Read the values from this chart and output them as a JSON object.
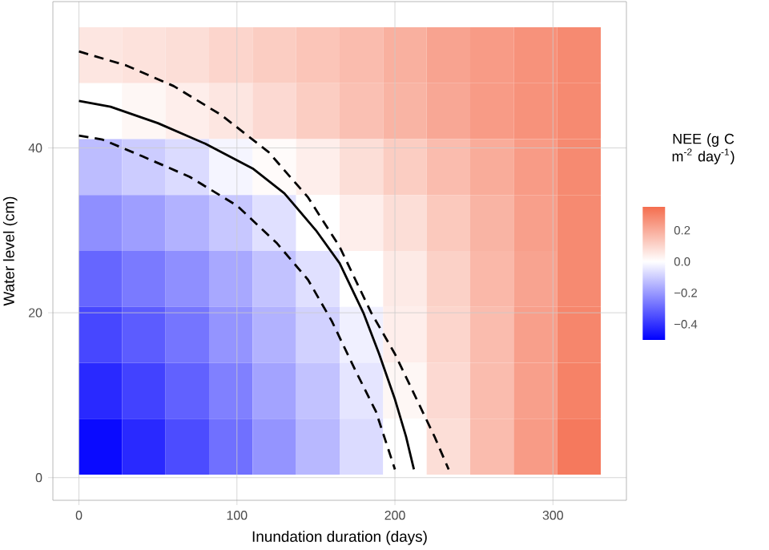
{
  "chart_data": [
    {
      "type": "heatmap",
      "clabel": "NEE (g C m$^{-2}$ day$^{-1}$)",
      "categories": [
        null,
        null,
        null,
        null,
        null,
        null,
        null,
        null,
        null,
        null,
        null,
        null
      ],
      "y_categories": [
        null,
        null,
        null,
        null,
        null,
        null,
        null,
        null
      ],
      "cells": [
        [
          0.06,
          0.07,
          0.08,
          0.1,
          0.12,
          0.14,
          0.16,
          0.19,
          0.22,
          0.24,
          0.26,
          0.28
        ],
        [
          0.0,
          0.02,
          0.04,
          0.06,
          0.09,
          0.12,
          0.15,
          0.18,
          0.21,
          0.24,
          0.26,
          0.28
        ],
        [
          -0.13,
          -0.1,
          -0.07,
          -0.02,
          0.01,
          0.04,
          0.08,
          0.12,
          0.16,
          0.2,
          0.24,
          0.28
        ],
        [
          -0.22,
          -0.19,
          -0.15,
          -0.11,
          -0.06,
          0.0,
          0.04,
          0.08,
          0.13,
          0.18,
          0.23,
          0.28
        ],
        [
          -0.3,
          -0.26,
          -0.22,
          -0.17,
          -0.12,
          -0.06,
          0.0,
          0.05,
          0.11,
          0.17,
          0.22,
          0.28
        ],
        [
          -0.36,
          -0.32,
          -0.27,
          -0.21,
          -0.15,
          -0.09,
          -0.03,
          0.04,
          0.1,
          0.16,
          0.23,
          0.29
        ],
        [
          -0.42,
          -0.37,
          -0.31,
          -0.25,
          -0.18,
          -0.12,
          -0.05,
          0.02,
          0.09,
          0.16,
          0.23,
          0.3
        ],
        [
          -0.48,
          -0.42,
          -0.35,
          -0.28,
          -0.21,
          -0.14,
          -0.07,
          0.0,
          0.08,
          0.16,
          0.24,
          0.32
        ]
      ],
      "colors": [
        "#0000ff",
        "#ffffff",
        "#f46d4e"
      ],
      "clim": [
        -0.5,
        0.35
      ],
      "cticks": [
        {
          "value": -0.4,
          "label": "−0.4"
        },
        {
          "value": -0.2,
          "label": "−0.2"
        },
        {
          "value": 0,
          "label": "0.0"
        },
        {
          "value": 0.2,
          "label": "0.2"
        }
      ]
    },
    {
      "type": "line",
      "xlabel": "Inundation duration (days)",
      "ylabel": "Water level (cm)",
      "xlim": [
        -16.5,
        346.5
      ],
      "ylim": [
        -2.75,
        57.75
      ],
      "xticks": [
        0,
        100,
        200,
        300
      ],
      "yticks": [
        0,
        20,
        40
      ],
      "grid": true,
      "series": [
        {
          "color": "#000000",
          "line_style": "solid",
          "x": [
            0,
            20,
            50,
            80,
            110,
            130,
            150,
            165,
            180,
            190,
            200,
            207,
            212
          ],
          "values": [
            45.7,
            45,
            43,
            40.5,
            37.5,
            34.5,
            30,
            26,
            20,
            15,
            9.5,
            5,
            1
          ]
        },
        {
          "color": "#000000",
          "line_style": "dashed",
          "x": [
            0,
            30,
            60,
            90,
            120,
            145,
            165,
            185,
            200,
            215,
            225,
            234
          ],
          "values": [
            51.7,
            50,
            47.5,
            44,
            39.5,
            34,
            28,
            20,
            15,
            9,
            5,
            1
          ]
        },
        {
          "color": "#000000",
          "line_style": "dashed",
          "x": [
            0,
            15,
            40,
            70,
            100,
            125,
            145,
            160,
            175,
            188,
            200
          ],
          "values": [
            41.5,
            41,
            39,
            36.5,
            33,
            28.5,
            24,
            19,
            13,
            8,
            1
          ]
        }
      ]
    }
  ]
}
